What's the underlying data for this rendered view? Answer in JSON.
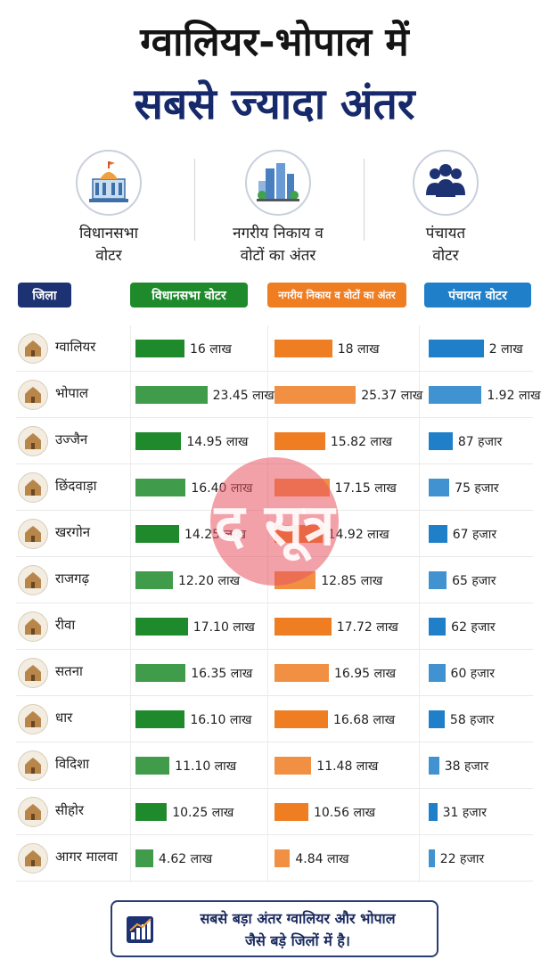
{
  "title": {
    "line1": "ग्वालियर-भोपाल में",
    "line2": "सबसे ज्यादा अंतर"
  },
  "categories": [
    {
      "label": "विधानसभा\nवोटर",
      "icon": "building-icon"
    },
    {
      "label": "नगरीय निकाय व\nवोटों का अंतर",
      "icon": "city-icon"
    },
    {
      "label": "पंचायत\nवोटर",
      "icon": "people-icon"
    }
  ],
  "headers": {
    "district": "जिला",
    "assembly": "विधानसभा वोटर",
    "urban": "नगरीय निकाय व वोटों का अंतर",
    "panchayat": "पंचायत वोटर"
  },
  "colors": {
    "title_blue": "#16296b",
    "header_navy": "#1d3272",
    "green": "#1f8a2c",
    "orange": "#ef7d22",
    "blue": "#1f7fc8"
  },
  "watermark": "द सूत्र",
  "footer": {
    "text": "सबसे बड़ा अंतर ग्वालियर और भोपाल\nजैसे बड़े जिलों में है।",
    "icon": "bar-chart-icon"
  },
  "chart_data": {
    "type": "table",
    "columns": [
      "जिला",
      "विधानसभा वोटर",
      "नगरीय निकाय व वोटों का अंतर",
      "पंचायत वोटर"
    ],
    "units": {
      "assembly": "लाख",
      "urban": "लाख",
      "panchayat": "लाख"
    },
    "rows": [
      {
        "district": "ग्वालियर",
        "icon": "fort-icon",
        "assembly": 16,
        "assembly_label": "16 लाख",
        "urban": 18,
        "urban_label": "18 लाख",
        "panchayat": 2,
        "panchayat_label": "2 लाख"
      },
      {
        "district": "भोपाल",
        "icon": "tower-icon",
        "assembly": 23.45,
        "assembly_label": "23.45 लाख",
        "urban": 25.37,
        "urban_label": "25.37 लाख",
        "panchayat": 1.92,
        "panchayat_label": "1.92 लाख"
      },
      {
        "district": "उज्जैन",
        "icon": "temple-icon",
        "assembly": 14.95,
        "assembly_label": "14.95 लाख",
        "urban": 15.82,
        "urban_label": "15.82 लाख",
        "panchayat": 0.87,
        "panchayat_label": "87 हजार"
      },
      {
        "district": "छिंदवाड़ा",
        "icon": "waterfall-icon",
        "assembly": 16.4,
        "assembly_label": "16.40 लाख",
        "urban": 17.15,
        "urban_label": "17.15 लाख",
        "panchayat": 0.75,
        "panchayat_label": "75 हजार"
      },
      {
        "district": "खरगोन",
        "icon": "tiger-icon",
        "assembly": 14.25,
        "assembly_label": "14.25 लाख",
        "urban": 14.92,
        "urban_label": "14.92 लाख",
        "panchayat": 0.67,
        "panchayat_label": "67 हजार"
      },
      {
        "district": "राजगढ़",
        "icon": "gate-icon",
        "assembly": 12.2,
        "assembly_label": "12.20 लाख",
        "urban": 12.85,
        "urban_label": "12.85 लाख",
        "panchayat": 0.65,
        "panchayat_label": "65 हजार"
      },
      {
        "district": "रीवा",
        "icon": "landscape-icon",
        "assembly": 17.1,
        "assembly_label": "17.10 लाख",
        "urban": 17.72,
        "urban_label": "17.72 लाख",
        "panchayat": 0.62,
        "panchayat_label": "62 हजार"
      },
      {
        "district": "सतना",
        "icon": "temple-icon",
        "assembly": 16.35,
        "assembly_label": "16.35 लाख",
        "urban": 16.95,
        "urban_label": "16.95 लाख",
        "panchayat": 0.6,
        "panchayat_label": "60 हजार"
      },
      {
        "district": "धार",
        "icon": "hill-icon",
        "assembly": 16.1,
        "assembly_label": "16.10 लाख",
        "urban": 16.68,
        "urban_label": "16.68 लाख",
        "panchayat": 0.58,
        "panchayat_label": "58 हजार"
      },
      {
        "district": "विदिशा",
        "icon": "gate-icon",
        "assembly": 11.1,
        "assembly_label": "11.10 लाख",
        "urban": 11.48,
        "urban_label": "11.48 लाख",
        "panchayat": 0.38,
        "panchayat_label": "38 हजार"
      },
      {
        "district": "सीहोर",
        "icon": "fort-icon",
        "assembly": 10.25,
        "assembly_label": "10.25 लाख",
        "urban": 10.56,
        "urban_label": "10.56 लाख",
        "panchayat": 0.31,
        "panchayat_label": "31 हजार"
      },
      {
        "district": "आगर मालवा",
        "icon": "cave-icon",
        "assembly": 4.62,
        "assembly_label": "4.62 लाख",
        "urban": 4.84,
        "urban_label": "4.84 लाख",
        "panchayat": 0.22,
        "panchayat_label": "22 हजार"
      }
    ]
  }
}
